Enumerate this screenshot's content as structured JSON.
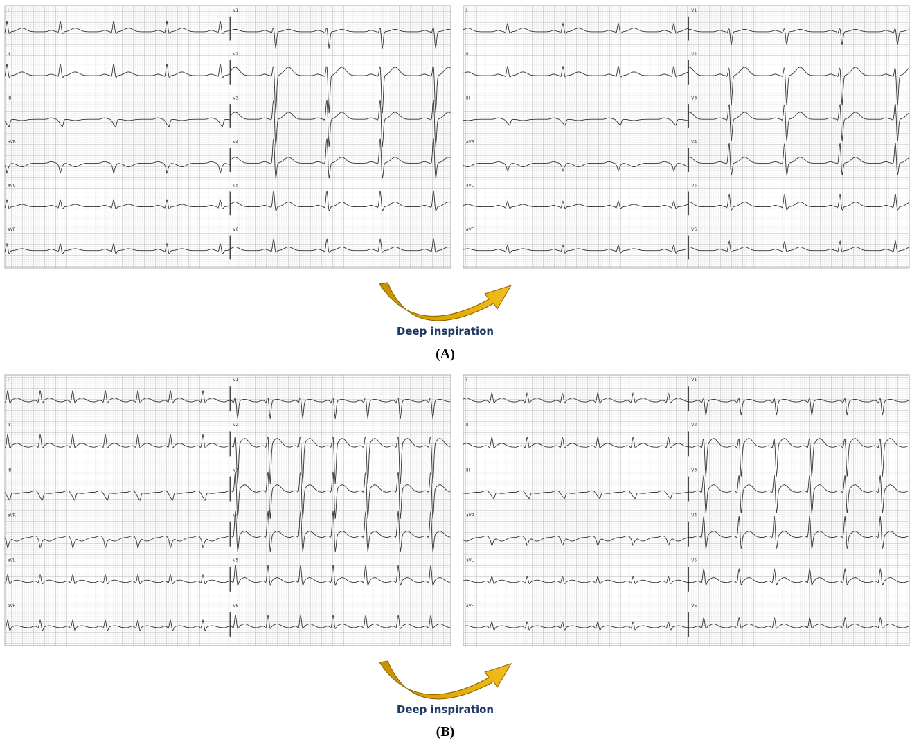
{
  "panels": [
    {
      "label": "(A)",
      "caption": "Deep inspiration",
      "ecgs": [
        {
          "leads": [
            "I",
            "II",
            "III",
            "aVR",
            "aVL",
            "aVF",
            "V1",
            "V2",
            "V3",
            "V4",
            "V5",
            "V6"
          ]
        },
        {
          "leads": [
            "I",
            "II",
            "III",
            "aVR",
            "aVL",
            "aVF",
            "V1",
            "V2",
            "V3",
            "V4",
            "V5",
            "V6"
          ]
        }
      ]
    },
    {
      "label": "(B)",
      "caption": "Deep inspiration",
      "ecgs": [
        {
          "leads": [
            "I",
            "II",
            "III",
            "aVR",
            "aVL",
            "aVF",
            "V1",
            "V2",
            "V3",
            "V4",
            "V5",
            "V6"
          ]
        },
        {
          "leads": [
            "I",
            "II",
            "III",
            "aVR",
            "aVL",
            "aVF",
            "V1",
            "V2",
            "V3",
            "V4",
            "V5",
            "V6"
          ]
        }
      ]
    }
  ]
}
